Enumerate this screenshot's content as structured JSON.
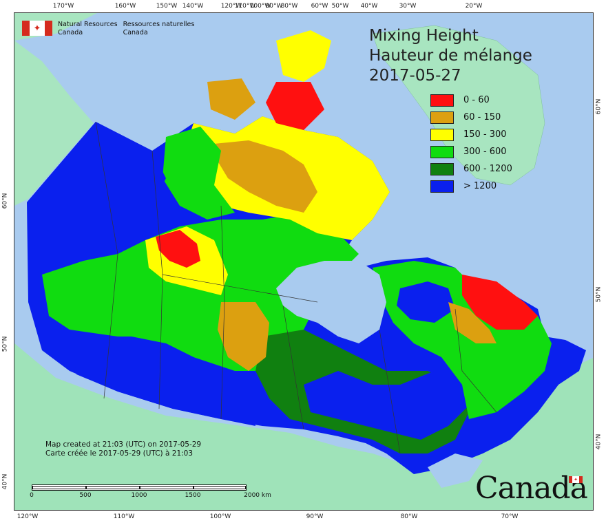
{
  "title": {
    "line1": "Mixing Height",
    "line2": "Hauteur de mélange",
    "date": "2017-05-27"
  },
  "agency": {
    "en_line1": "Natural Resources",
    "en_line2": "Canada",
    "fr_line1": "Ressources naturelles",
    "fr_line2": "Canada",
    "flag_icon": "canada-flag-icon"
  },
  "legend": [
    {
      "label": "0 - 60",
      "color": "#ff1010"
    },
    {
      "label": "60 - 150",
      "color": "#dca010"
    },
    {
      "label": "150 - 300",
      "color": "#ffff00"
    },
    {
      "label": "300 - 600",
      "color": "#10dc10"
    },
    {
      "label": "600 - 1200",
      "color": "#108010"
    },
    {
      "label": "> 1200",
      "color": "#0a20ee"
    }
  ],
  "colors": {
    "water": "#a9cbef",
    "land_outside": "#9fe3b9",
    "ice": "#a8e5c0",
    "boundary": "#333333"
  },
  "top_ticks": [
    "170°W",
    "160°W",
    "150°W",
    "140°W",
    "120°W",
    "110°W",
    "100°W",
    "90°W",
    "80°W",
    "60°W",
    "50°W",
    "40°W",
    "30°W",
    "20°W"
  ],
  "bottom_ticks": [
    "120°W",
    "110°W",
    "100°W",
    "90°W",
    "80°W",
    "70°W"
  ],
  "left_ticks": [
    "60°N",
    "50°N",
    "40°N"
  ],
  "right_ticks": [
    "60°N",
    "50°N",
    "40°N"
  ],
  "credit": {
    "en": "Map created at 21:03 (UTC) on 2017-05-29",
    "fr": "Carte créée le 2017-05-29 (UTC) à 21:03"
  },
  "scale": {
    "labels": [
      "0",
      "500",
      "1000",
      "1500",
      "2000 km"
    ]
  },
  "wordmark": "Canada"
}
